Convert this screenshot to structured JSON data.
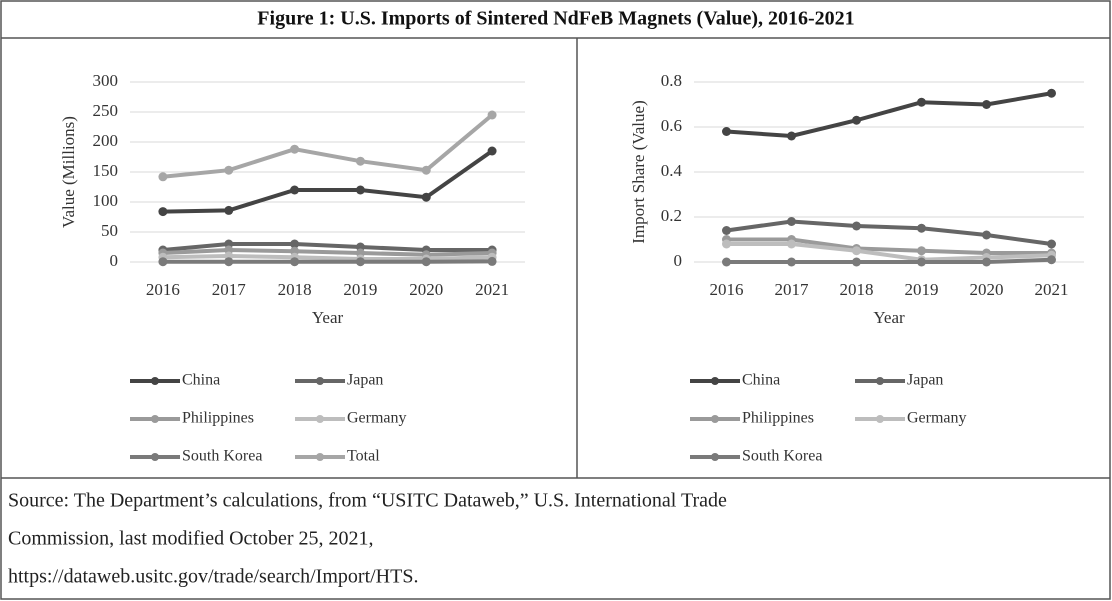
{
  "title": "Figure 1: U.S. Imports of Sintered NdFeB Magnets (Value), 2016-2021",
  "chart_data": [
    {
      "type": "line",
      "y_label": "Value (Millions)",
      "x_label": "Year",
      "categories": [
        "2016",
        "2017",
        "2018",
        "2019",
        "2020",
        "2021"
      ],
      "ylim": [
        0,
        300
      ],
      "yticks": [
        0,
        50,
        100,
        150,
        200,
        250,
        300
      ],
      "grid": true,
      "series": [
        {
          "name": "China",
          "color": "#444444",
          "values": [
            84,
            86,
            120,
            120,
            108,
            185
          ]
        },
        {
          "name": "Japan",
          "color": "#666666",
          "values": [
            20,
            30,
            30,
            25,
            20,
            20
          ]
        },
        {
          "name": "Philippines",
          "color": "#9a9a9a",
          "values": [
            15,
            20,
            18,
            15,
            12,
            15
          ]
        },
        {
          "name": "Germany",
          "color": "#bdbdbd",
          "values": [
            8,
            10,
            8,
            5,
            5,
            8
          ]
        },
        {
          "name": "South Korea",
          "color": "#7a7a7a",
          "values": [
            0.5,
            0.5,
            0.5,
            0.5,
            0.5,
            1
          ]
        },
        {
          "name": "Total",
          "color": "#a6a6a6",
          "values": [
            142,
            153,
            188,
            168,
            153,
            245
          ]
        }
      ]
    },
    {
      "type": "line",
      "y_label": "Import Share (Value)",
      "x_label": "Year",
      "categories": [
        "2016",
        "2017",
        "2018",
        "2019",
        "2020",
        "2021"
      ],
      "ylim": [
        0,
        0.8
      ],
      "yticks": [
        0,
        0.2,
        0.4,
        0.6,
        0.8
      ],
      "grid": true,
      "series": [
        {
          "name": "China",
          "color": "#444444",
          "values": [
            0.58,
            0.56,
            0.63,
            0.71,
            0.7,
            0.75
          ]
        },
        {
          "name": "Japan",
          "color": "#666666",
          "values": [
            0.14,
            0.18,
            0.16,
            0.15,
            0.12,
            0.08
          ]
        },
        {
          "name": "Philippines",
          "color": "#9a9a9a",
          "values": [
            0.1,
            0.1,
            0.06,
            0.05,
            0.04,
            0.04
          ]
        },
        {
          "name": "Germany",
          "color": "#bdbdbd",
          "values": [
            0.08,
            0.08,
            0.05,
            0.01,
            0.02,
            0.03
          ]
        },
        {
          "name": "South Korea",
          "color": "#7a7a7a",
          "values": [
            0,
            0,
            0,
            0,
            0,
            0.01
          ]
        }
      ]
    }
  ],
  "source": [
    "Source: The Department’s calculations, from “USITC Dataweb,” U.S. International Trade",
    "Commission, last modified October 25, 2021,",
    "https://dataweb.usitc.gov/trade/search/Import/HTS."
  ]
}
